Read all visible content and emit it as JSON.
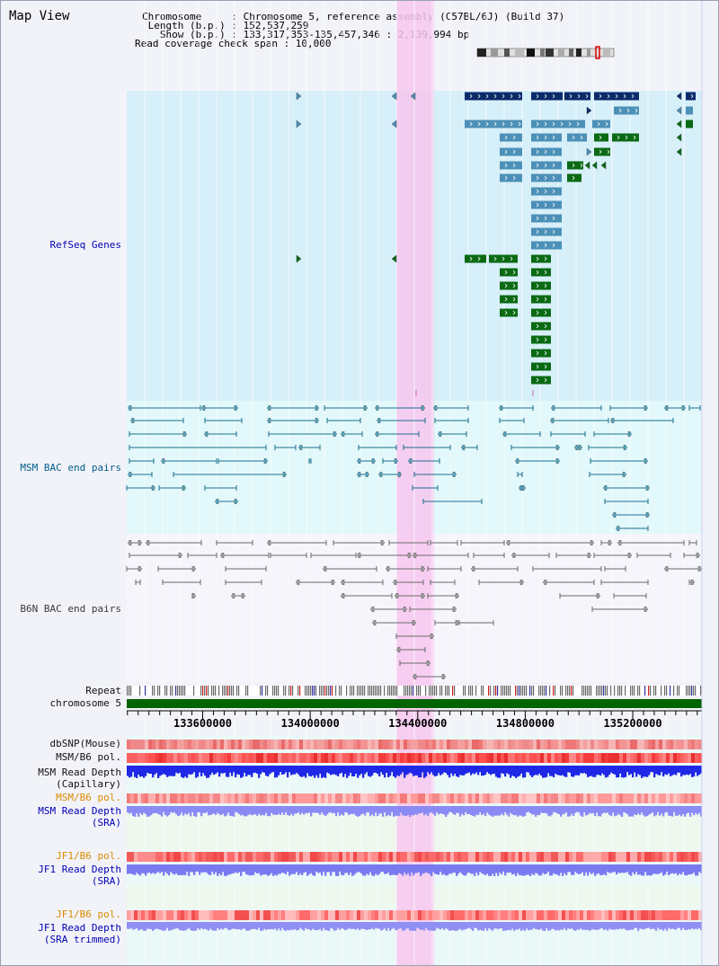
{
  "panel_title": "Map View",
  "info": {
    "chromosome": "Chromosome     : Chromosome 5, reference assembly (C57BL/6J) (Build 37)",
    "length": " Length (b.p.) : 152,537,259",
    "show": "   Show (b.p.) : 133,317,353-135,457,346 : 2,139,994 bp",
    "read_coverage": "Read coverage check span : 10,000"
  },
  "tracks": {
    "refseq": "RefSeq Genes",
    "msm_bac": "MSM BAC end pairs",
    "b6n_bac": "B6N BAC end pairs",
    "repeat": "Repeat",
    "chromosome": "chromosome 5",
    "dbsnp": "dbSNP(Mouse)",
    "msm_b6_pol_1": "MSM/B6 pol.",
    "msm_read_depth_cap_1": "MSM Read Depth",
    "msm_read_depth_cap_2": "(Capillary)",
    "msm_b6_pol_2": "MSM/B6 pol.",
    "msm_read_depth_sra_1": "MSM Read Depth",
    "msm_read_depth_sra_2": "(SRA)",
    "jf1_b6_pol_1": "JF1/B6 pol.",
    "jf1_read_depth_sra_1": "JF1 Read Depth",
    "jf1_read_depth_sra_2": "(SRA)",
    "jf1_b6_pol_2": "JF1/B6 pol.",
    "jf1_read_depth_trim_1": "JF1 Read Depth",
    "jf1_read_depth_trim_2": "(SRA trimmed)"
  },
  "axis_ticks": [
    {
      "label": "133600000",
      "value": 133600000
    },
    {
      "label": "134000000",
      "value": 134000000
    },
    {
      "label": "134400000",
      "value": 134400000
    },
    {
      "label": "134800000",
      "value": 134800000
    },
    {
      "label": "135200000",
      "value": 135200000
    }
  ],
  "view_range": {
    "start": 133317353,
    "end": 135457346
  },
  "highlight_range": {
    "start": 134320000,
    "end": 134460000
  },
  "colors": {
    "gene_dark": "#0a2a6a",
    "gene_mid": "#4c90b8",
    "gene_green": "#0a6a14",
    "refseq_bg": "#d7eff9",
    "msm_bac_bg": "#e2f8fa",
    "highlight": "#f7c7ee",
    "chromosome": "#006400"
  }
}
